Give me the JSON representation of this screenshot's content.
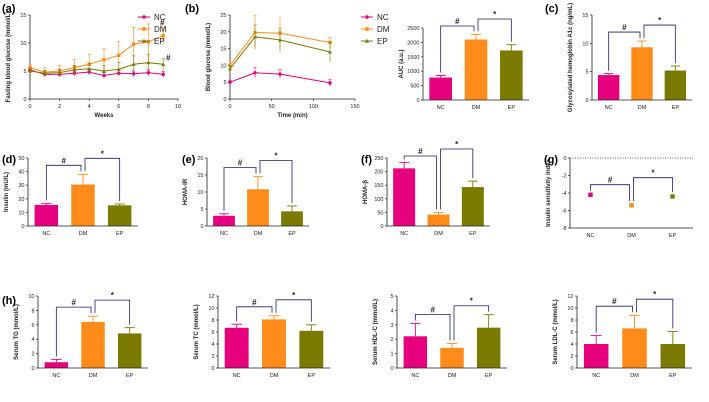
{
  "colors": {
    "NC": "#e6007e",
    "DM": "#ff8c1a",
    "EP": "#7a7a00",
    "bracket": "#1f1f6b",
    "axis": "#222222"
  },
  "chart_data": [
    {
      "id": "a",
      "panel_label": "(a)",
      "type": "line",
      "xlabel": "Weeks",
      "ylabel": "Fasting blood glucose (mmol/L)",
      "xlim": [
        0,
        10
      ],
      "ylim": [
        0,
        15
      ],
      "xticks": [
        "0",
        "2",
        "4",
        "6",
        "8",
        "10"
      ],
      "yticks": [
        "0",
        "5",
        "10",
        "15"
      ],
      "x": [
        0,
        1,
        2,
        3,
        4,
        5,
        6,
        7,
        8,
        9
      ],
      "series": [
        {
          "name": "NC",
          "values": [
            5.2,
            4.4,
            4.4,
            4.6,
            4.8,
            4.2,
            4.6,
            4.5,
            4.7,
            4.4
          ],
          "errors": [
            0.5,
            0.5,
            0.5,
            0.5,
            0.5,
            0.5,
            0.5,
            0.5,
            0.5,
            0.5
          ]
        },
        {
          "name": "DM",
          "values": [
            5.6,
            4.8,
            5.0,
            5.6,
            6.2,
            7.0,
            7.8,
            9.8,
            10.2,
            11.3
          ],
          "errors": [
            0.6,
            0.8,
            1.0,
            1.5,
            1.8,
            2.0,
            2.5,
            3.0,
            3.2,
            1.5
          ]
        },
        {
          "name": "EP",
          "values": [
            5.0,
            4.6,
            4.7,
            5.2,
            5.4,
            5.0,
            5.3,
            6.2,
            6.5,
            6.2
          ],
          "errors": [
            0.5,
            0.5,
            0.6,
            0.8,
            1.0,
            1.0,
            1.2,
            1.5,
            1.5,
            1.0
          ]
        }
      ],
      "annotations": [
        "#",
        "#"
      ],
      "legend": [
        "NC",
        "DM",
        "EP"
      ]
    },
    {
      "id": "b1",
      "panel_label": "(b)",
      "type": "line",
      "xlabel": "Time (min)",
      "ylabel": "Blood glucose (mmol/L)",
      "xlim": [
        0,
        150
      ],
      "ylim": [
        0,
        25
      ],
      "xticks": [
        "0",
        "50",
        "100",
        "150"
      ],
      "yticks": [
        "0",
        "5",
        "10",
        "15",
        "20",
        "25"
      ],
      "x": [
        0,
        30,
        60,
        120
      ],
      "series": [
        {
          "name": "NC",
          "values": [
            5.0,
            7.8,
            7.4,
            4.8
          ],
          "errors": [
            0.6,
            1.5,
            1.3,
            1.0
          ]
        },
        {
          "name": "DM",
          "values": [
            10.0,
            19.8,
            19.6,
            16.8
          ],
          "errors": [
            1.2,
            5.0,
            4.5,
            1.5
          ]
        },
        {
          "name": "EP",
          "values": [
            9.0,
            18.5,
            17.6,
            14.0
          ],
          "errors": [
            1.0,
            3.5,
            3.5,
            3.0
          ]
        }
      ],
      "legend": [
        "NC",
        "DM",
        "EP"
      ]
    },
    {
      "id": "b2",
      "type": "bar",
      "ylabel": "AUC (a.u.)",
      "categories": [
        "NC",
        "DM",
        "EP"
      ],
      "values": [
        780,
        2100,
        1720
      ],
      "errors": [
        70,
        180,
        200
      ],
      "ylim": [
        0,
        2500
      ],
      "yticks": [
        "0",
        "500",
        "1000",
        "1500",
        "2000",
        "2500"
      ],
      "annotations": [
        "#",
        "*"
      ]
    },
    {
      "id": "c",
      "panel_label": "(c)",
      "type": "bar",
      "ylabel": "Glycosylated hemoglobin A1c (ng/mL)",
      "categories": [
        "NC",
        "DM",
        "EP"
      ],
      "values": [
        4.4,
        9.3,
        5.2
      ],
      "errors": [
        0.25,
        1.1,
        0.8
      ],
      "ylim": [
        0,
        15
      ],
      "yticks": [
        "0",
        "5",
        "10",
        "15"
      ],
      "annotations": [
        "#",
        "*"
      ]
    },
    {
      "id": "d",
      "panel_label": "(d)",
      "type": "bar",
      "ylabel": "Insulin (mU/L)",
      "categories": [
        "NC",
        "DM",
        "EP"
      ],
      "values": [
        15.5,
        30.5,
        15.2
      ],
      "errors": [
        1.2,
        7.5,
        1.0
      ],
      "ylim": [
        0,
        50
      ],
      "yticks": [
        "0",
        "10",
        "20",
        "30",
        "40",
        "50"
      ],
      "annotations": [
        "#",
        "*"
      ]
    },
    {
      "id": "e",
      "panel_label": "(e)",
      "type": "bar",
      "ylabel": "HOMA-IR",
      "categories": [
        "NC",
        "DM",
        "EP"
      ],
      "values": [
        3.0,
        10.8,
        4.3
      ],
      "errors": [
        0.6,
        3.8,
        1.6
      ],
      "ylim": [
        0,
        20
      ],
      "yticks": [
        "0",
        "5",
        "10",
        "15",
        "20"
      ],
      "annotations": [
        "#",
        "*"
      ]
    },
    {
      "id": "f",
      "panel_label": "(f)",
      "type": "bar",
      "ylabel": "HOMA-β",
      "categories": [
        "NC",
        "DM",
        "EP"
      ],
      "values": [
        212,
        42,
        143
      ],
      "errors": [
        22,
        8,
        22
      ],
      "ylim": [
        0,
        250
      ],
      "yticks": [
        "0",
        "50",
        "100",
        "150",
        "200",
        "250"
      ],
      "annotations": [
        "#",
        "*"
      ]
    },
    {
      "id": "g",
      "panel_label": "(g)",
      "type": "scatter",
      "ylabel": "Insulin sensitivity index",
      "categories": [
        "NC",
        "DM",
        "EP"
      ],
      "values": [
        -4.2,
        -5.4,
        -4.4
      ],
      "errors": [
        0.12,
        0.15,
        0.15
      ],
      "ylim": [
        -8,
        0
      ],
      "yticks": [
        "0",
        "-2",
        "-4",
        "-6",
        "-8"
      ],
      "annotations": [
        "#",
        "*"
      ]
    },
    {
      "id": "h1",
      "panel_label": "(h)",
      "type": "bar",
      "ylabel": "Serum TG (mmol/L)",
      "categories": [
        "NC",
        "DM",
        "EP"
      ],
      "values": [
        0.8,
        6.4,
        4.8
      ],
      "errors": [
        0.4,
        0.8,
        0.8
      ],
      "ylim": [
        0,
        10
      ],
      "yticks": [
        "0",
        "2",
        "4",
        "6",
        "8",
        "10"
      ],
      "annotations": [
        "#",
        "*"
      ]
    },
    {
      "id": "h2",
      "type": "bar",
      "ylabel": "Serum TC (mmol/L)",
      "categories": [
        "NC",
        "DM",
        "EP"
      ],
      "values": [
        6.7,
        8.1,
        6.2
      ],
      "errors": [
        0.6,
        0.6,
        1.0
      ],
      "ylim": [
        0,
        12
      ],
      "yticks": [
        "0",
        "2",
        "4",
        "6",
        "8",
        "10",
        "12"
      ],
      "annotations": [
        "#",
        "*"
      ]
    },
    {
      "id": "h3",
      "type": "bar",
      "ylabel": "Serum HDL-C (mmol/L)",
      "categories": [
        "NC",
        "DM",
        "EP"
      ],
      "values": [
        2.2,
        1.4,
        2.8
      ],
      "errors": [
        0.9,
        0.3,
        0.9
      ],
      "ylim": [
        0,
        5
      ],
      "yticks": [
        "0",
        "1",
        "2",
        "3",
        "4",
        "5"
      ],
      "annotations": [
        "#",
        "*"
      ]
    },
    {
      "id": "h4",
      "type": "bar",
      "ylabel": "Serum LDL-C (mmol/L)",
      "categories": [
        "NC",
        "DM",
        "EP"
      ],
      "values": [
        4.0,
        6.6,
        4.0
      ],
      "errors": [
        1.4,
        2.2,
        2.1
      ],
      "ylim": [
        0,
        12
      ],
      "yticks": [
        "0",
        "2",
        "4",
        "6",
        "8",
        "10",
        "12"
      ],
      "annotations": [
        "#",
        "*"
      ]
    }
  ]
}
